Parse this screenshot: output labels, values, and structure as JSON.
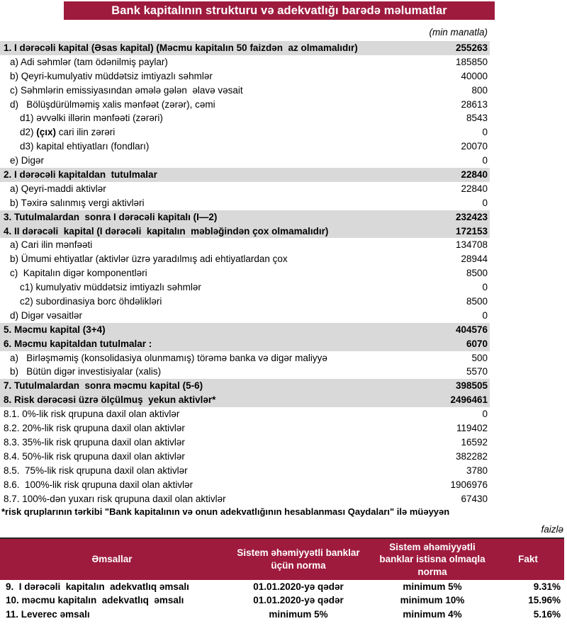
{
  "title": "Bank kapitalının strukturu və adekvatlığı barədə məlumatlar",
  "unit_note": "(min manatla)",
  "colors": {
    "maroon": "#9E1B3E",
    "row_gray": "#D9D9D9"
  },
  "capital_table": {
    "rows": [
      {
        "label": "1. I dərəcəli kapital (Əsas kapital) (Məcmu kapitalın 50 faizdən  az olmamalıdır)",
        "value": "255263",
        "style": "section"
      },
      {
        "label": "a) Adi səhmlər (tam ödənilmiş paylar)",
        "value": "185850",
        "style": "l1"
      },
      {
        "label": "b) Qeyri-kumulyativ müddətsiz imtiyazlı səhmlər",
        "value": "40000",
        "style": "l1"
      },
      {
        "label": "c) Səhmlərin emissiyasından əmələ gələn  əlavə vəsait",
        "value": "800",
        "style": "l1"
      },
      {
        "label": "d)   Bölüşdürülməmiş xalis mənfəət (zərər), cəmi",
        "value": "28613",
        "style": "l1"
      },
      {
        "label": "d1) əvvəlki illərin mənfəəti (zərəri)",
        "value": "8543",
        "style": "l2"
      },
      {
        "parts": [
          {
            "text": "d2) ",
            "bold": false
          },
          {
            "text": "(çıx)",
            "bold": true
          },
          {
            "text": " cari ilin zərəri",
            "bold": false
          }
        ],
        "value": "0",
        "style": "l2"
      },
      {
        "label": "d3) kapital ehtiyatları (fondları)",
        "value": "20070",
        "style": "l2"
      },
      {
        "label": "e) Digər",
        "value": "0",
        "style": "l1"
      },
      {
        "label": "2. I dərəcəli kapitaldan  tutulmalar",
        "value": "22840",
        "style": "section"
      },
      {
        "label": "a) Qeyri-maddi aktivlər",
        "value": "22840",
        "style": "l1"
      },
      {
        "label": "b) Təxirə salınmış vergi aktivləri",
        "value": "0",
        "style": "l1"
      },
      {
        "label": "3. Tutulmalardan  sonra I dərəcəli kapitalı (I—2)",
        "value": "232423",
        "style": "section"
      },
      {
        "label": "4. II dərəcəli  kapital (I dərəcəli  kapitalın  məbləğindən çox olmamalıdır)",
        "value": "172153",
        "style": "section"
      },
      {
        "label": "a) Cari ilin mənfəəti",
        "value": "134708",
        "style": "l1"
      },
      {
        "label": "b) Ümumi ehtiyatlar (aktivlər üzrə yaradılmış adi ehtiyatlardan çox",
        "value": "28944",
        "style": "l1"
      },
      {
        "label": "c)  Kapitalın digər komponentləri",
        "value": "8500",
        "style": "l1"
      },
      {
        "label": "c1) kumulyativ müddətsiz imtiyazlı səhmlər",
        "value": "0",
        "style": "l2"
      },
      {
        "label": "c2) subordinasiya borc öhdəlikləri",
        "value": "8500",
        "style": "l2"
      },
      {
        "label": "d) Digər vəsaitlər",
        "value": "0",
        "style": "l1"
      },
      {
        "label": "5. Məcmu kapital (3+4)",
        "value": "404576",
        "style": "section"
      },
      {
        "label": "6. Məcmu kapitaldan tutulmalar :",
        "value": "6070",
        "style": "section"
      },
      {
        "label": "a)   Birləşməmiş (konsolidasiya olunmamış) törəmə banka və digər maliyyə",
        "value": "500",
        "style": "l1"
      },
      {
        "label": "b)   Bütün digər investisiyalar (xalis)",
        "value": "5570",
        "style": "l1"
      },
      {
        "label": "7. Tutulmalardan  sonra məcmu kapital (5-6)",
        "value": "398505",
        "style": "section"
      },
      {
        "label": "8. Risk dərəcəsi üzrə ölçülmuş  yekun aktivlər*",
        "value": "2496461",
        "style": "section"
      },
      {
        "label": "8.1. 0%-lik risk qrupuna daxil olan aktivlər",
        "value": "0",
        "style": "l0"
      },
      {
        "label": "8.2. 20%-lik risk qrupuna daxil olan aktivlər",
        "value": "119402",
        "style": "l0"
      },
      {
        "label": "8.3. 35%-lik risk qrupuna daxil olan aktivlər",
        "value": "16592",
        "style": "l0"
      },
      {
        "label": "8.4. 50%-lik risk qrupuna daxil olan aktivlər",
        "value": "382282",
        "style": "l0"
      },
      {
        "label": "8.5.  75%-lik risk qrupuna daxil olan aktivlər",
        "value": "3780",
        "style": "l0"
      },
      {
        "label": "8.6.  100%-lik risk qrupuna daxil olan aktivlər",
        "value": "1906976",
        "style": "l0"
      },
      {
        "label": "8.7. 100%-dən yuxarı risk qrupuna daxil olan aktivlər",
        "value": "67430",
        "style": "l0"
      }
    ]
  },
  "footnote": "*risk qruplarının tərkibi \"Bank kapitalının və onun adekvatlığının hesablanması Qaydaları\" ilə müəyyən",
  "ratio_table": {
    "unit_note": "faizlə",
    "headers": [
      "Əmsallar",
      "Sistem əhəmiyyətli banklar üçün norma",
      "Sistem əhəmiyyətli banklar istisna olmaqla norma",
      "Fakt"
    ],
    "rows": [
      [
        "9.  I dərəcəli  kapitalın  adekvatlıq əmsalı",
        "01.01.2020-yə qədər",
        "minimum 5%",
        "9.31%"
      ],
      [
        "10. məcmu kapitalın  adekvatlıq  əmsalı",
        "01.01.2020-yə qədər",
        "minimum 10%",
        "15.96%"
      ],
      [
        "11. Leverec əmsalı",
        "minimum 5%",
        "minimum 4%",
        "5.16%"
      ]
    ]
  }
}
